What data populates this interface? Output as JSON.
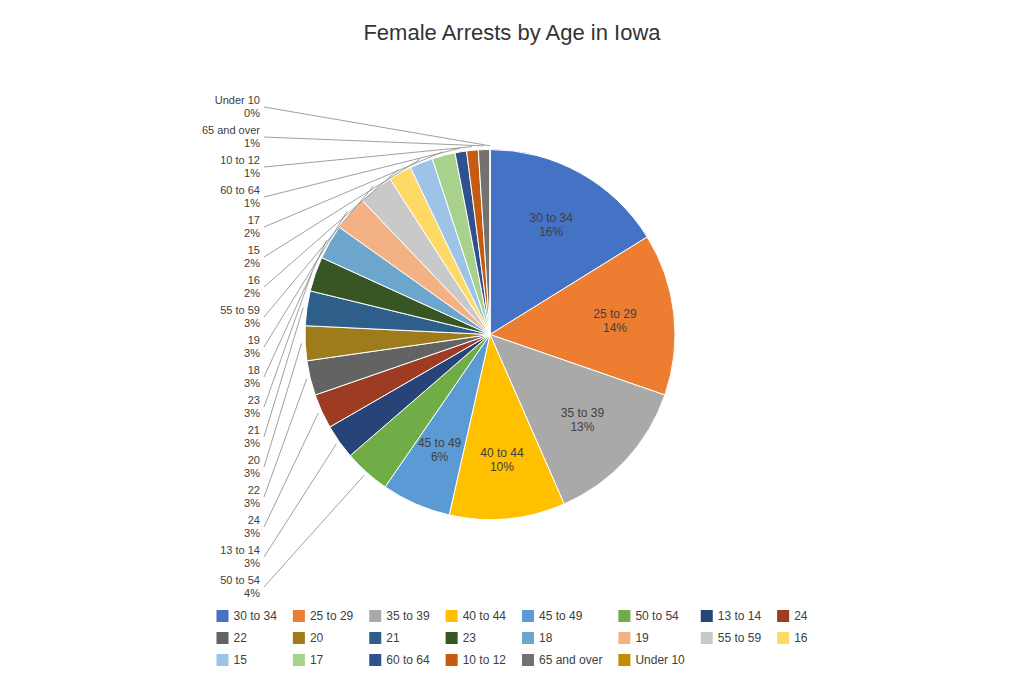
{
  "chart_data": {
    "type": "pie",
    "title": "Female Arrests by Age in Iowa",
    "categories": [
      "30 to 34",
      "25 to 29",
      "35 to 39",
      "40 to 44",
      "45 to 49",
      "50 to 54",
      "13 to 14",
      "24",
      "22",
      "20",
      "21",
      "23",
      "18",
      "19",
      "55 to 59",
      "16",
      "15",
      "17",
      "60 to 64",
      "10 to 12",
      "65 and over",
      "Under 10"
    ],
    "values": [
      16,
      14,
      13,
      10,
      6,
      4,
      3,
      3,
      3,
      3,
      3,
      3,
      3,
      3,
      3,
      2,
      2,
      2,
      1,
      1,
      1,
      0
    ],
    "value_labels": [
      "16%",
      "14%",
      "13%",
      "10%",
      "6%",
      "4%",
      "3%",
      "3%",
      "3%",
      "3%",
      "3%",
      "3%",
      "3%",
      "3%",
      "3%",
      "2%",
      "2%",
      "2%",
      "1%",
      "1%",
      "1%",
      "0%"
    ],
    "colors": [
      "#4472C4",
      "#ED7D31",
      "#A9A9A9",
      "#FFC000",
      "#5B9BD5",
      "#70AD47",
      "#264478",
      "#9E3B23",
      "#636363",
      "#9E7C1C",
      "#2E5F8A",
      "#375623",
      "#6CA6CD",
      "#F4B183",
      "#C9C9C9",
      "#FFD966",
      "#9DC3E6",
      "#A9D18E",
      "#2F528F",
      "#C55A11",
      "#767171",
      "#C09000"
    ],
    "data_labels": true,
    "legend": "bottom"
  }
}
